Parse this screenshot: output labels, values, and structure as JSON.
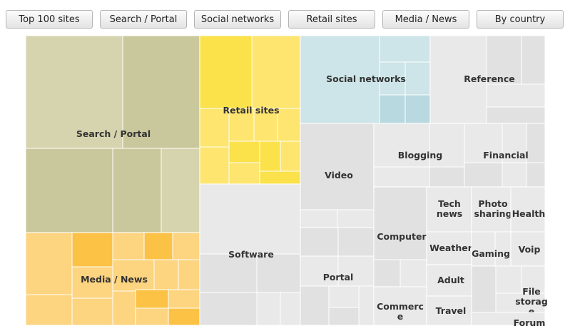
{
  "toolbar": {
    "buttons": [
      "Top 100 sites",
      "Search / Portal",
      "Social networks",
      "Retail sites",
      "Media / News",
      "By country"
    ]
  },
  "colors": {
    "search_portal": [
      "#c9c89c",
      "#d5d4ae"
    ],
    "retail": [
      "#fbe14a",
      "#fde56f"
    ],
    "social": [
      "#b8d9df",
      "#cde4e8"
    ],
    "media": [
      "#fcc245",
      "#fdd47f"
    ],
    "gray": [
      "#e1e1e1",
      "#e9e9e9"
    ],
    "cell_border": "#ffffff",
    "label": "#333333"
  },
  "chart_data": {
    "type": "treemap",
    "title": "",
    "groups": [
      {
        "label": "Search / Portal",
        "palette": "search_portal",
        "cells": 7
      },
      {
        "label": "Retail sites",
        "palette": "retail",
        "cells": 16
      },
      {
        "label": "Social networks",
        "palette": "social",
        "cells": 6
      },
      {
        "label": "Reference",
        "palette": "gray",
        "cells": 8
      },
      {
        "label": "Media / News",
        "palette": "media",
        "cells": 16
      },
      {
        "label": "Software",
        "palette": "gray",
        "cells": 7
      },
      {
        "label": "Video",
        "palette": "gray",
        "cells": 5
      },
      {
        "label": "Blogging",
        "palette": "gray",
        "cells": 3
      },
      {
        "label": "Financial",
        "palette": "gray",
        "cells": 6
      },
      {
        "label": "Portal",
        "palette": "gray",
        "cells": 8
      },
      {
        "label": "Computer",
        "palette": "gray",
        "cells": 4
      },
      {
        "label": "Tech news",
        "lines": [
          "Tech",
          "news"
        ],
        "palette": "gray",
        "cells": 1
      },
      {
        "label": "Photo sharing",
        "lines": [
          "Photo",
          "sharing"
        ],
        "palette": "gray",
        "cells": 1
      },
      {
        "label": "Health",
        "palette": "gray",
        "cells": 1
      },
      {
        "label": "Weather",
        "palette": "gray",
        "cells": 1
      },
      {
        "label": "Gaming",
        "palette": "gray",
        "cells": 2
      },
      {
        "label": "Voip",
        "palette": "gray",
        "cells": 1
      },
      {
        "label": "Adult",
        "palette": "gray",
        "cells": 1
      },
      {
        "label": "Commerce",
        "lines": [
          "Commerc",
          "e"
        ],
        "palette": "gray",
        "cells": 1
      },
      {
        "label": "Travel",
        "palette": "gray",
        "cells": 1
      },
      {
        "label": "File storage",
        "lines": [
          "File",
          "storag",
          "e"
        ],
        "palette": "gray",
        "cells": 4
      },
      {
        "label": "Forum",
        "palette": "gray",
        "cells": 1
      }
    ]
  }
}
